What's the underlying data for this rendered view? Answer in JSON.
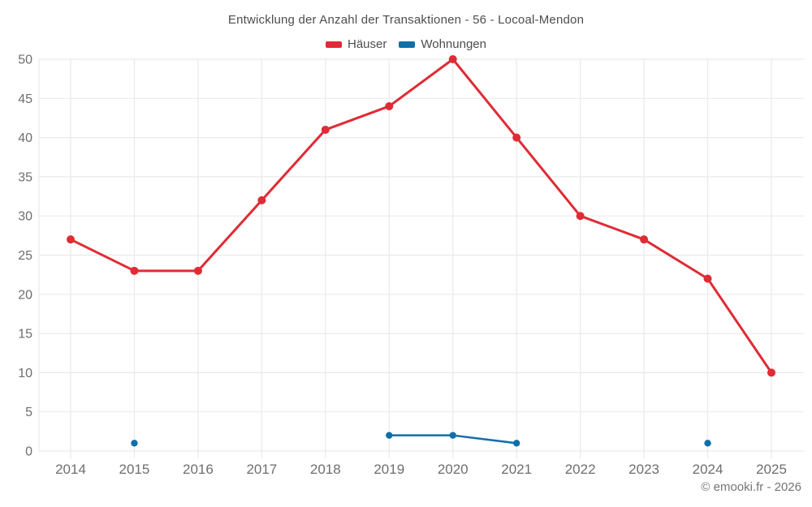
{
  "page": {
    "footer": "© emooki.fr - 2026"
  },
  "chart_data": {
    "type": "line",
    "title": "Entwicklung der Anzahl der Transaktionen - 56 - Locoal-Mendon",
    "categories": [
      "2014",
      "2015",
      "2016",
      "2017",
      "2018",
      "2019",
      "2020",
      "2021",
      "2022",
      "2023",
      "2024",
      "2025"
    ],
    "series": [
      {
        "name": "Häuser",
        "color": "#e02b35",
        "values": [
          27,
          23,
          23,
          32,
          41,
          44,
          50,
          40,
          30,
          27,
          22,
          10
        ]
      },
      {
        "name": "Wohnungen",
        "color": "#0f6fa8",
        "values": [
          null,
          1,
          null,
          null,
          null,
          2,
          2,
          1,
          null,
          null,
          1,
          null
        ]
      }
    ],
    "ylim": [
      0,
      50
    ],
    "yticks": [
      0,
      5,
      10,
      15,
      20,
      25,
      30,
      35,
      40,
      45,
      50
    ],
    "xlabel": "",
    "ylabel": "",
    "grid": true,
    "legend_position": "top",
    "marker": "circle",
    "tick_color": "#6e6e6e",
    "grid_color": "#eaeaea"
  }
}
